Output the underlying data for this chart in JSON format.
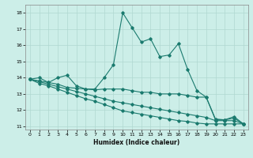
{
  "xlabel": "Humidex (Indice chaleur)",
  "xlim": [
    -0.5,
    23.5
  ],
  "ylim": [
    10.8,
    18.5
  ],
  "yticks": [
    11,
    12,
    13,
    14,
    15,
    16,
    17,
    18
  ],
  "xticks": [
    0,
    1,
    2,
    3,
    4,
    5,
    6,
    7,
    8,
    9,
    10,
    11,
    12,
    13,
    14,
    15,
    16,
    17,
    18,
    19,
    20,
    21,
    22,
    23
  ],
  "bg_color": "#cceee8",
  "grid_color": "#b0d8d0",
  "line_color": "#1a7a6e",
  "line1_x": [
    0,
    1,
    2,
    3,
    4,
    5,
    6,
    7,
    8,
    9,
    10,
    11,
    12,
    13,
    14,
    15,
    16,
    17,
    18,
    19,
    20,
    21,
    22,
    23
  ],
  "line1_y": [
    13.9,
    14.0,
    13.7,
    14.0,
    14.15,
    13.5,
    13.3,
    13.3,
    14.0,
    14.8,
    18.0,
    17.1,
    16.2,
    16.4,
    15.3,
    15.4,
    16.1,
    14.5,
    13.2,
    12.8,
    11.4,
    11.4,
    11.6,
    11.15
  ],
  "line2_x": [
    0,
    1,
    2,
    3,
    4,
    5,
    6,
    7,
    8,
    9,
    10,
    11,
    12,
    13,
    14,
    15,
    16,
    17,
    18,
    19,
    20,
    21,
    22,
    23
  ],
  "line2_y": [
    13.9,
    13.8,
    13.7,
    13.6,
    13.4,
    13.35,
    13.3,
    13.25,
    13.3,
    13.3,
    13.3,
    13.2,
    13.1,
    13.1,
    13.0,
    13.0,
    13.0,
    12.9,
    12.8,
    12.8,
    11.45,
    11.4,
    11.5,
    11.15
  ],
  "line3_x": [
    0,
    1,
    2,
    3,
    4,
    5,
    6,
    7,
    8,
    9,
    10,
    11,
    12,
    13,
    14,
    15,
    16,
    17,
    18,
    19,
    20,
    21,
    22,
    23
  ],
  "line3_y": [
    13.9,
    13.75,
    13.6,
    13.45,
    13.3,
    13.15,
    13.0,
    12.85,
    12.7,
    12.55,
    12.45,
    12.35,
    12.25,
    12.15,
    12.05,
    11.95,
    11.85,
    11.75,
    11.65,
    11.55,
    11.35,
    11.35,
    11.35,
    11.15
  ],
  "line4_x": [
    0,
    1,
    2,
    3,
    4,
    5,
    6,
    7,
    8,
    9,
    10,
    11,
    12,
    13,
    14,
    15,
    16,
    17,
    18,
    19,
    20,
    21,
    22,
    23
  ],
  "line4_y": [
    13.9,
    13.65,
    13.5,
    13.3,
    13.1,
    12.9,
    12.7,
    12.55,
    12.35,
    12.15,
    11.95,
    11.85,
    11.75,
    11.65,
    11.55,
    11.45,
    11.35,
    11.3,
    11.2,
    11.15,
    11.15,
    11.15,
    11.15,
    11.15
  ]
}
